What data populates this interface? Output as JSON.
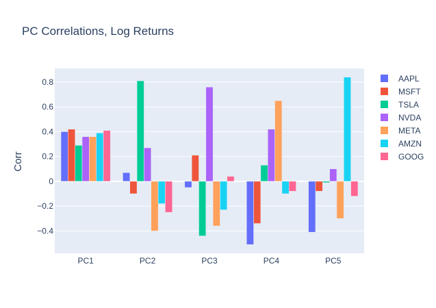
{
  "chart_data": {
    "type": "bar",
    "title": "PC Correlations, Log Returns",
    "xlabel": "",
    "ylabel": "Corr",
    "ylim": [
      -0.58,
      0.91
    ],
    "yticks": [
      -0.4,
      -0.2,
      0,
      0.2,
      0.4,
      0.6,
      0.8
    ],
    "ytick_labels": [
      "−0.4",
      "−0.2",
      "0",
      "0.2",
      "0.4",
      "0.6",
      "0.8"
    ],
    "grid": true,
    "legend_position": "right",
    "categories": [
      "PC1",
      "PC2",
      "PC3",
      "PC4",
      "PC5"
    ],
    "series": [
      {
        "name": "AAPL",
        "color": "#636efa",
        "values": [
          0.4,
          0.07,
          -0.05,
          -0.51,
          -0.41
        ]
      },
      {
        "name": "MSFT",
        "color": "#ef553b",
        "values": [
          0.42,
          -0.1,
          0.21,
          -0.34,
          -0.08
        ]
      },
      {
        "name": "TSLA",
        "color": "#00cc96",
        "values": [
          0.29,
          0.81,
          -0.44,
          0.13,
          -0.01
        ]
      },
      {
        "name": "NVDA",
        "color": "#ab63fa",
        "values": [
          0.36,
          0.27,
          0.76,
          0.42,
          0.1
        ]
      },
      {
        "name": "META",
        "color": "#ffa15a",
        "values": [
          0.36,
          -0.4,
          -0.36,
          0.65,
          -0.3
        ]
      },
      {
        "name": "AMZN",
        "color": "#19d3f3",
        "values": [
          0.39,
          -0.18,
          -0.23,
          -0.1,
          0.84
        ]
      },
      {
        "name": "GOOG",
        "color": "#ff6692",
        "values": [
          0.41,
          -0.25,
          0.04,
          -0.08,
          -0.12
        ]
      }
    ]
  }
}
